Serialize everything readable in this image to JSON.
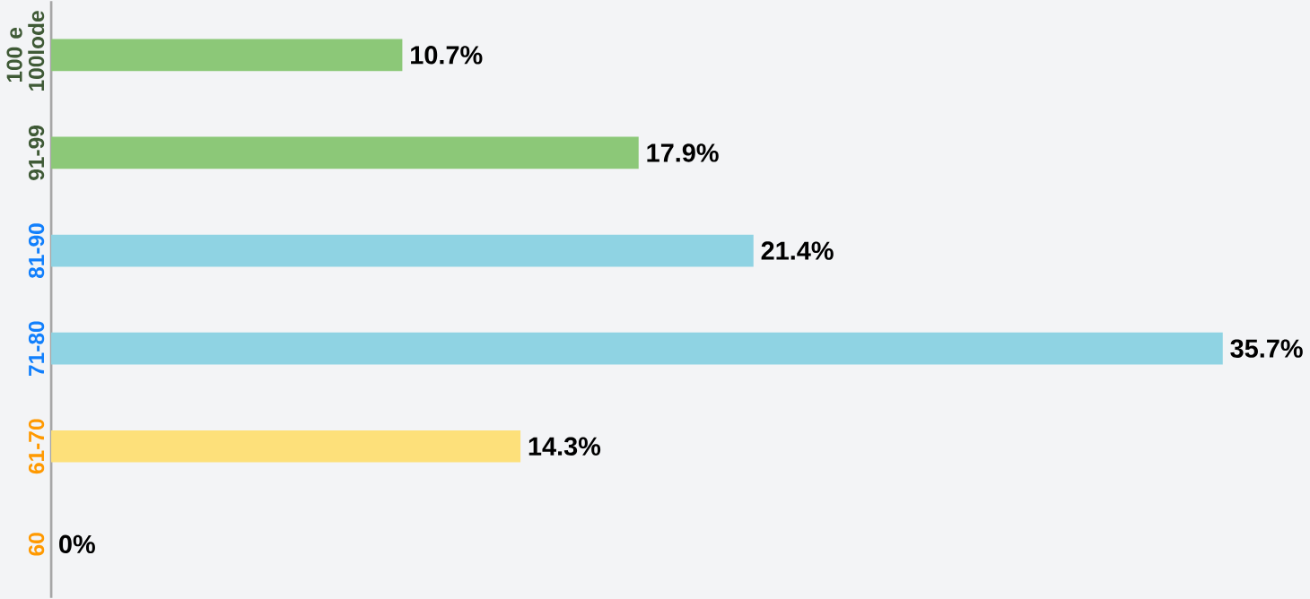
{
  "chart_data": {
    "type": "bar",
    "orientation": "horizontal",
    "categories": [
      "100 e 100lode",
      "91-99",
      "81-90",
      "71-80",
      "61-70",
      "60"
    ],
    "values": [
      10.7,
      17.9,
      21.4,
      35.7,
      14.3,
      0
    ],
    "value_labels": [
      "10.7%",
      "17.9%",
      "21.4%",
      "35.7%",
      "14.3%",
      "0%"
    ],
    "colors": [
      "#8cc878",
      "#8cc878",
      "#8fd3e3",
      "#8fd3e3",
      "#fde07a",
      "#fde07a"
    ]
  }
}
